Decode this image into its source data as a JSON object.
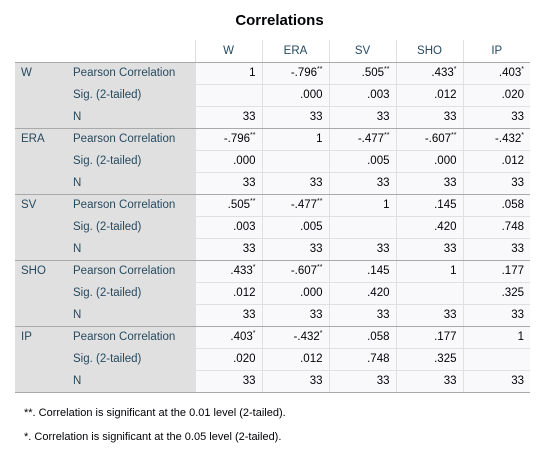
{
  "title": "Correlations",
  "columns": [
    "W",
    "ERA",
    "SV",
    "SHO",
    "IP"
  ],
  "rows": [
    {
      "var": "W",
      "stats": [
        {
          "label": "Pearson Correlation",
          "cells": [
            {
              "v": "1",
              "sig": ""
            },
            {
              "v": "-.796",
              "sig": "**"
            },
            {
              "v": ".505",
              "sig": "**"
            },
            {
              "v": ".433",
              "sig": "*"
            },
            {
              "v": ".403",
              "sig": "*"
            }
          ]
        },
        {
          "label": "Sig. (2-tailed)",
          "cells": [
            {
              "v": "",
              "sig": ""
            },
            {
              "v": ".000",
              "sig": ""
            },
            {
              "v": ".003",
              "sig": ""
            },
            {
              "v": ".012",
              "sig": ""
            },
            {
              "v": ".020",
              "sig": ""
            }
          ]
        },
        {
          "label": "N",
          "cells": [
            {
              "v": "33",
              "sig": ""
            },
            {
              "v": "33",
              "sig": ""
            },
            {
              "v": "33",
              "sig": ""
            },
            {
              "v": "33",
              "sig": ""
            },
            {
              "v": "33",
              "sig": ""
            }
          ]
        }
      ]
    },
    {
      "var": "ERA",
      "stats": [
        {
          "label": "Pearson Correlation",
          "cells": [
            {
              "v": "-.796",
              "sig": "**"
            },
            {
              "v": "1",
              "sig": ""
            },
            {
              "v": "-.477",
              "sig": "**"
            },
            {
              "v": "-.607",
              "sig": "**"
            },
            {
              "v": "-.432",
              "sig": "*"
            }
          ]
        },
        {
          "label": "Sig. (2-tailed)",
          "cells": [
            {
              "v": ".000",
              "sig": ""
            },
            {
              "v": "",
              "sig": ""
            },
            {
              "v": ".005",
              "sig": ""
            },
            {
              "v": ".000",
              "sig": ""
            },
            {
              "v": ".012",
              "sig": ""
            }
          ]
        },
        {
          "label": "N",
          "cells": [
            {
              "v": "33",
              "sig": ""
            },
            {
              "v": "33",
              "sig": ""
            },
            {
              "v": "33",
              "sig": ""
            },
            {
              "v": "33",
              "sig": ""
            },
            {
              "v": "33",
              "sig": ""
            }
          ]
        }
      ]
    },
    {
      "var": "SV",
      "stats": [
        {
          "label": "Pearson Correlation",
          "cells": [
            {
              "v": ".505",
              "sig": "**"
            },
            {
              "v": "-.477",
              "sig": "**"
            },
            {
              "v": "1",
              "sig": ""
            },
            {
              "v": ".145",
              "sig": ""
            },
            {
              "v": ".058",
              "sig": ""
            }
          ]
        },
        {
          "label": "Sig. (2-tailed)",
          "cells": [
            {
              "v": ".003",
              "sig": ""
            },
            {
              "v": ".005",
              "sig": ""
            },
            {
              "v": "",
              "sig": ""
            },
            {
              "v": ".420",
              "sig": ""
            },
            {
              "v": ".748",
              "sig": ""
            }
          ]
        },
        {
          "label": "N",
          "cells": [
            {
              "v": "33",
              "sig": ""
            },
            {
              "v": "33",
              "sig": ""
            },
            {
              "v": "33",
              "sig": ""
            },
            {
              "v": "33",
              "sig": ""
            },
            {
              "v": "33",
              "sig": ""
            }
          ]
        }
      ]
    },
    {
      "var": "SHO",
      "stats": [
        {
          "label": "Pearson Correlation",
          "cells": [
            {
              "v": ".433",
              "sig": "*"
            },
            {
              "v": "-.607",
              "sig": "**"
            },
            {
              "v": ".145",
              "sig": ""
            },
            {
              "v": "1",
              "sig": ""
            },
            {
              "v": ".177",
              "sig": ""
            }
          ]
        },
        {
          "label": "Sig. (2-tailed)",
          "cells": [
            {
              "v": ".012",
              "sig": ""
            },
            {
              "v": ".000",
              "sig": ""
            },
            {
              "v": ".420",
              "sig": ""
            },
            {
              "v": "",
              "sig": ""
            },
            {
              "v": ".325",
              "sig": ""
            }
          ]
        },
        {
          "label": "N",
          "cells": [
            {
              "v": "33",
              "sig": ""
            },
            {
              "v": "33",
              "sig": ""
            },
            {
              "v": "33",
              "sig": ""
            },
            {
              "v": "33",
              "sig": ""
            },
            {
              "v": "33",
              "sig": ""
            }
          ]
        }
      ]
    },
    {
      "var": "IP",
      "stats": [
        {
          "label": "Pearson Correlation",
          "cells": [
            {
              "v": ".403",
              "sig": "*"
            },
            {
              "v": "-.432",
              "sig": "*"
            },
            {
              "v": ".058",
              "sig": ""
            },
            {
              "v": ".177",
              "sig": ""
            },
            {
              "v": "1",
              "sig": ""
            }
          ]
        },
        {
          "label": "Sig. (2-tailed)",
          "cells": [
            {
              "v": ".020",
              "sig": ""
            },
            {
              "v": ".012",
              "sig": ""
            },
            {
              "v": ".748",
              "sig": ""
            },
            {
              "v": ".325",
              "sig": ""
            },
            {
              "v": "",
              "sig": ""
            }
          ]
        },
        {
          "label": "N",
          "cells": [
            {
              "v": "33",
              "sig": ""
            },
            {
              "v": "33",
              "sig": ""
            },
            {
              "v": "33",
              "sig": ""
            },
            {
              "v": "33",
              "sig": ""
            },
            {
              "v": "33",
              "sig": ""
            }
          ]
        }
      ]
    }
  ],
  "footnotes": [
    "**. Correlation is significant at the 0.01 level (2-tailed).",
    "*. Correlation is significant at the 0.05 level (2-tailed)."
  ],
  "colors": {
    "header_text": "#264a60",
    "label_background": "#e0e0e0",
    "cell_background": "#f9f9fb",
    "rule": "#a9a9a9"
  }
}
